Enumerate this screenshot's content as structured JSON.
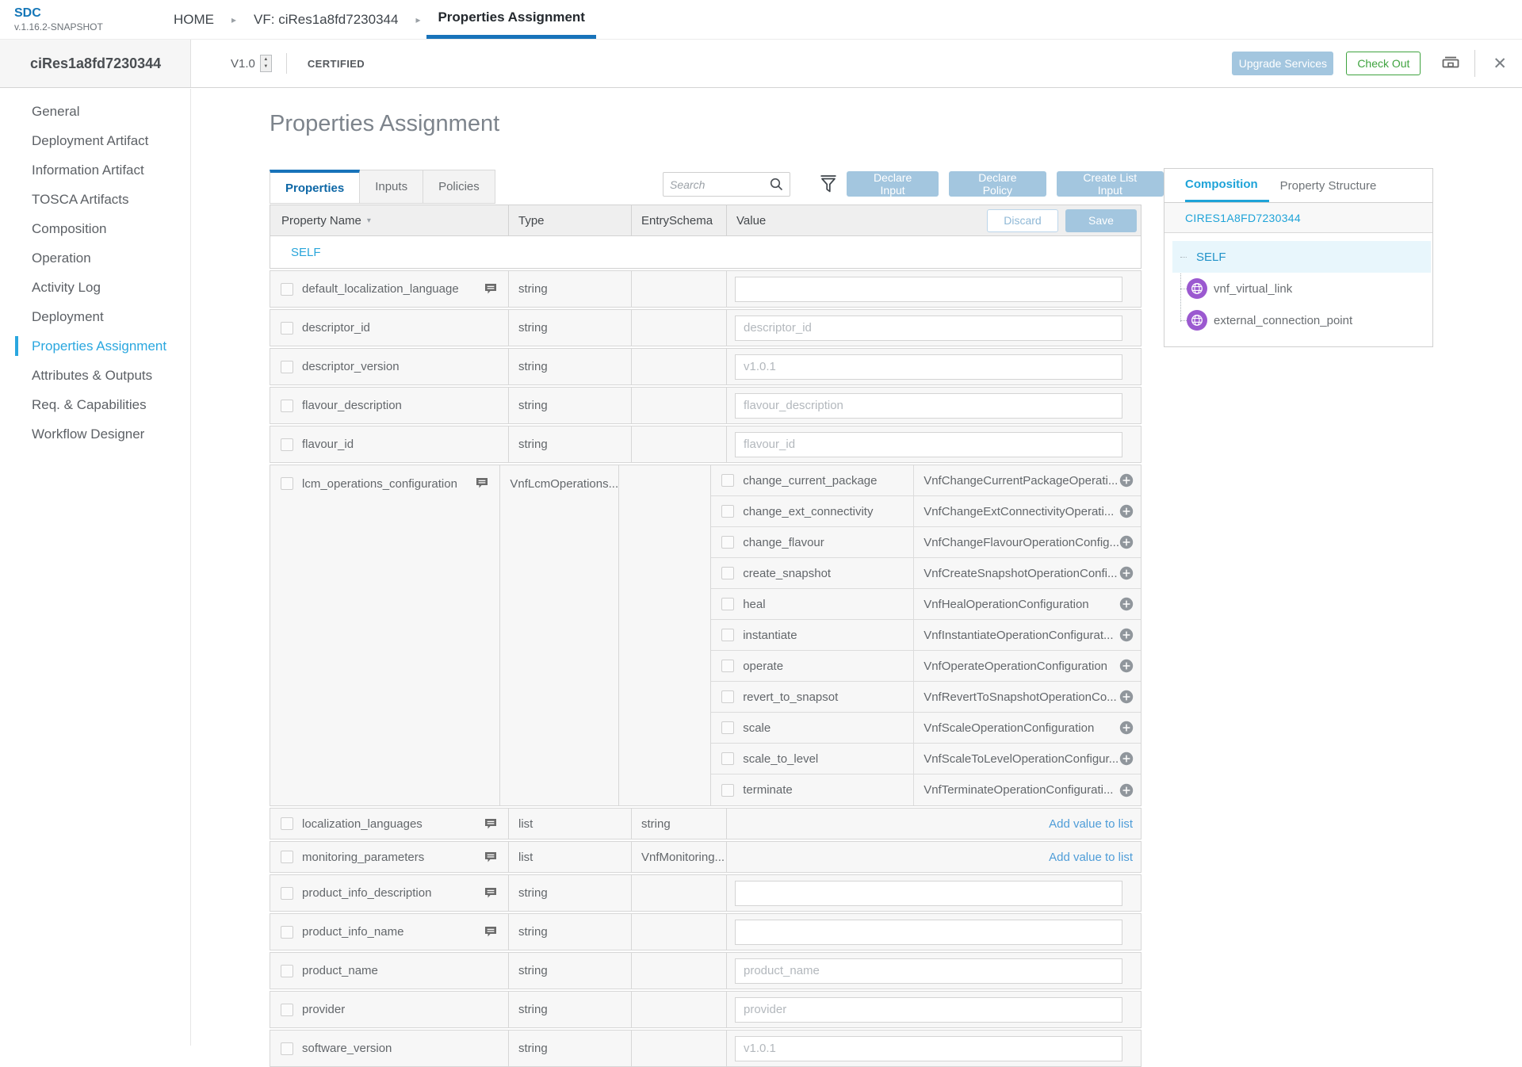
{
  "colors": {
    "accent_blue": "#1873ba",
    "sidebar_active_cyan": "#2aa7df",
    "action_button_blue": "#a3c6df",
    "checkout_green": "#3fa33f",
    "node_purple": "#9b59d0",
    "link_blue": "#4f9dd8"
  },
  "icons": {
    "breadcrumb_separator": "▸",
    "sort": "▾",
    "stepper_up": "▲",
    "stepper_down": "▼",
    "close": "✕",
    "search": "magnifier",
    "filter": "funnel",
    "print": "printer",
    "comment": "speech-bubble",
    "add": "plus-circle",
    "node": "network-globe"
  },
  "app": {
    "logo": "SDC",
    "version": "v.1.16.2-SNAPSHOT"
  },
  "breadcrumbs": [
    {
      "label": "HOME",
      "active": false
    },
    {
      "label": "VF: ciRes1a8fd7230344",
      "active": false
    },
    {
      "label": "Properties Assignment",
      "active": true
    }
  ],
  "header": {
    "title": "ciRes1a8fd7230344",
    "version": "V1.0",
    "status": "CERTIFIED",
    "upgrade_label": "Upgrade Services",
    "checkout_label": "Check Out"
  },
  "sidebar": {
    "items": [
      {
        "label": "General"
      },
      {
        "label": "Deployment Artifact"
      },
      {
        "label": "Information Artifact"
      },
      {
        "label": "TOSCA Artifacts"
      },
      {
        "label": "Composition"
      },
      {
        "label": "Operation"
      },
      {
        "label": "Activity Log"
      },
      {
        "label": "Deployment"
      },
      {
        "label": "Properties Assignment",
        "active": true
      },
      {
        "label": "Attributes & Outputs"
      },
      {
        "label": "Req. & Capabilities"
      },
      {
        "label": "Workflow Designer"
      }
    ]
  },
  "main": {
    "page_title": "Properties Assignment",
    "tabs": [
      {
        "label": "Properties",
        "active": true
      },
      {
        "label": "Inputs"
      },
      {
        "label": "Policies"
      }
    ],
    "search_placeholder": "Search",
    "actions": [
      {
        "label": "Declare Input"
      },
      {
        "label": "Declare Policy"
      },
      {
        "label": "Create List Input"
      }
    ],
    "table": {
      "columns": [
        "Property Name",
        "Type",
        "EntrySchema",
        "Value"
      ],
      "discard_label": "Discard",
      "save_label": "Save",
      "group_label": "SELF",
      "rows": [
        {
          "name": "default_localization_language",
          "comment": true,
          "type": "string",
          "value": {
            "kind": "input",
            "placeholder": ""
          }
        },
        {
          "name": "descriptor_id",
          "type": "string",
          "value": {
            "kind": "input",
            "placeholder": "descriptor_id"
          }
        },
        {
          "name": "descriptor_version",
          "type": "string",
          "value": {
            "kind": "input",
            "placeholder": "v1.0.1"
          }
        },
        {
          "name": "flavour_description",
          "type": "string",
          "value": {
            "kind": "input",
            "placeholder": "flavour_description"
          }
        },
        {
          "name": "flavour_id",
          "type": "string",
          "value": {
            "kind": "input",
            "placeholder": "flavour_id"
          }
        },
        {
          "name": "lcm_operations_configuration",
          "comment": true,
          "type": "VnfLcmOperations...",
          "value": {
            "kind": "children",
            "children": [
              {
                "name": "change_current_package",
                "value": "VnfChangeCurrentPackageOperati..."
              },
              {
                "name": "change_ext_connectivity",
                "value": "VnfChangeExtConnectivityOperati..."
              },
              {
                "name": "change_flavour",
                "value": "VnfChangeFlavourOperationConfig..."
              },
              {
                "name": "create_snapshot",
                "value": "VnfCreateSnapshotOperationConfi..."
              },
              {
                "name": "heal",
                "value": "VnfHealOperationConfiguration"
              },
              {
                "name": "instantiate",
                "value": "VnfInstantiateOperationConfigurat..."
              },
              {
                "name": "operate",
                "value": "VnfOperateOperationConfiguration"
              },
              {
                "name": "revert_to_snapsot",
                "value": "VnfRevertToSnapshotOperationCo..."
              },
              {
                "name": "scale",
                "value": "VnfScaleOperationConfiguration"
              },
              {
                "name": "scale_to_level",
                "value": "VnfScaleToLevelOperationConfigur..."
              },
              {
                "name": "terminate",
                "value": "VnfTerminateOperationConfigurati..."
              }
            ]
          }
        },
        {
          "name": "localization_languages",
          "comment": true,
          "type": "list",
          "entry_schema": "string",
          "value": {
            "kind": "link",
            "label": "Add value to list"
          }
        },
        {
          "name": "monitoring_parameters",
          "comment": true,
          "type": "list",
          "entry_schema": "VnfMonitoring...",
          "value": {
            "kind": "link",
            "label": "Add value to list"
          }
        },
        {
          "name": "product_info_description",
          "comment": true,
          "type": "string",
          "value": {
            "kind": "input",
            "placeholder": ""
          }
        },
        {
          "name": "product_info_name",
          "comment": true,
          "type": "string",
          "value": {
            "kind": "input",
            "placeholder": ""
          }
        },
        {
          "name": "product_name",
          "type": "string",
          "value": {
            "kind": "input",
            "placeholder": "product_name"
          }
        },
        {
          "name": "provider",
          "type": "string",
          "value": {
            "kind": "input",
            "placeholder": "provider"
          }
        },
        {
          "name": "software_version",
          "type": "string",
          "value": {
            "kind": "input",
            "placeholder": "v1.0.1"
          }
        }
      ]
    }
  },
  "right_panel": {
    "tabs": [
      {
        "label": "Composition",
        "active": true
      },
      {
        "label": "Property Structure"
      }
    ],
    "component_id": "CIRES1A8FD7230344",
    "tree": [
      {
        "label": "SELF",
        "selected": true
      },
      {
        "label": "vnf_virtual_link",
        "icon": "network"
      },
      {
        "label": "external_connection_point",
        "icon": "network"
      }
    ]
  }
}
